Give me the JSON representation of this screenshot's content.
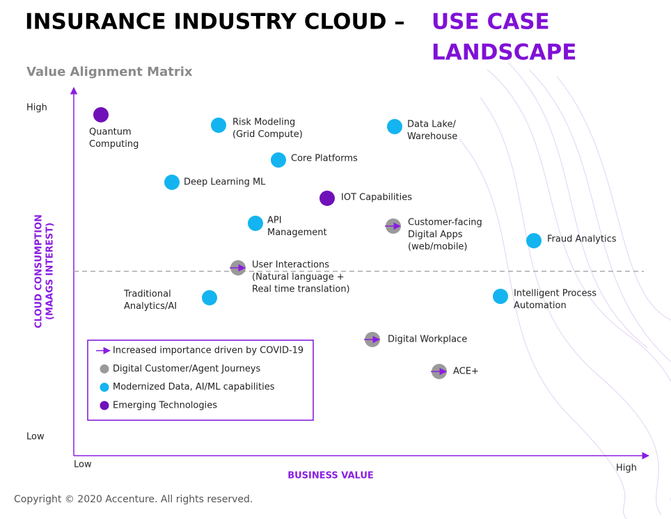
{
  "header": {
    "title_lead": "INSURANCE INDUSTRY CLOUD –",
    "title_accent": [
      "USE CASE",
      "LANDSCAPE"
    ],
    "subtitle": "Value Alignment Matrix"
  },
  "axes": {
    "y_label": [
      "CLOUD CONSUMPTION",
      "(MAAGS INTEREST)"
    ],
    "y_high": "High",
    "y_low": "Low",
    "x_label": "BUSINESS VALUE",
    "x_low": "Low",
    "x_high": "High"
  },
  "legend": [
    {
      "text": "Increased importance driven by COVID-19",
      "marker": "arrow",
      "color": "#8a1ee0"
    },
    {
      "text": "Digital Customer/Agent Journeys",
      "marker": "dot",
      "color": "#9a9a9a"
    },
    {
      "text": "Modernized Data, AI/ML capabilities",
      "marker": "dot",
      "color": "#14b4f0"
    },
    {
      "text": "Emerging Technologies",
      "marker": "dot",
      "color": "#7010b8"
    }
  ],
  "nodes": [
    {
      "label": [
        "Quantum",
        "Computing"
      ],
      "color": "#7010b8",
      "covid": false
    },
    {
      "label": [
        "Risk Modeling",
        "(Grid Compute)"
      ],
      "color": "#14b4f0",
      "covid": false
    },
    {
      "label": [
        "Data Lake/",
        "Warehouse"
      ],
      "color": "#14b4f0",
      "covid": false
    },
    {
      "label": [
        "Core Platforms"
      ],
      "color": "#14b4f0",
      "covid": false
    },
    {
      "label": [
        "Deep Learning ML"
      ],
      "color": "#14b4f0",
      "covid": false
    },
    {
      "label": [
        "IOT Capabilities"
      ],
      "color": "#7010b8",
      "covid": false
    },
    {
      "label": [
        "API",
        "Management"
      ],
      "color": "#14b4f0",
      "covid": false
    },
    {
      "label": [
        "Customer-facing",
        "Digital Apps",
        "(web/mobile)"
      ],
      "color": "#9a9a9a",
      "covid": true
    },
    {
      "label": [
        "Fraud Analytics"
      ],
      "color": "#14b4f0",
      "covid": false
    },
    {
      "label": [
        "User Interactions",
        "(Natural language +",
        "Real time translation)"
      ],
      "color": "#9a9a9a",
      "covid": true
    },
    {
      "label": [
        "Traditional",
        "Analytics/AI"
      ],
      "color": "#14b4f0",
      "covid": false
    },
    {
      "label": [
        "Intelligent Process",
        "Automation"
      ],
      "color": "#14b4f0",
      "covid": false
    },
    {
      "label": [
        "Digital Workplace"
      ],
      "color": "#9a9a9a",
      "covid": true
    },
    {
      "label": [
        "ACE+"
      ],
      "color": "#9a9a9a",
      "covid": true
    }
  ],
  "footer": "Copyright © 2020 Accenture. All rights reserved."
}
